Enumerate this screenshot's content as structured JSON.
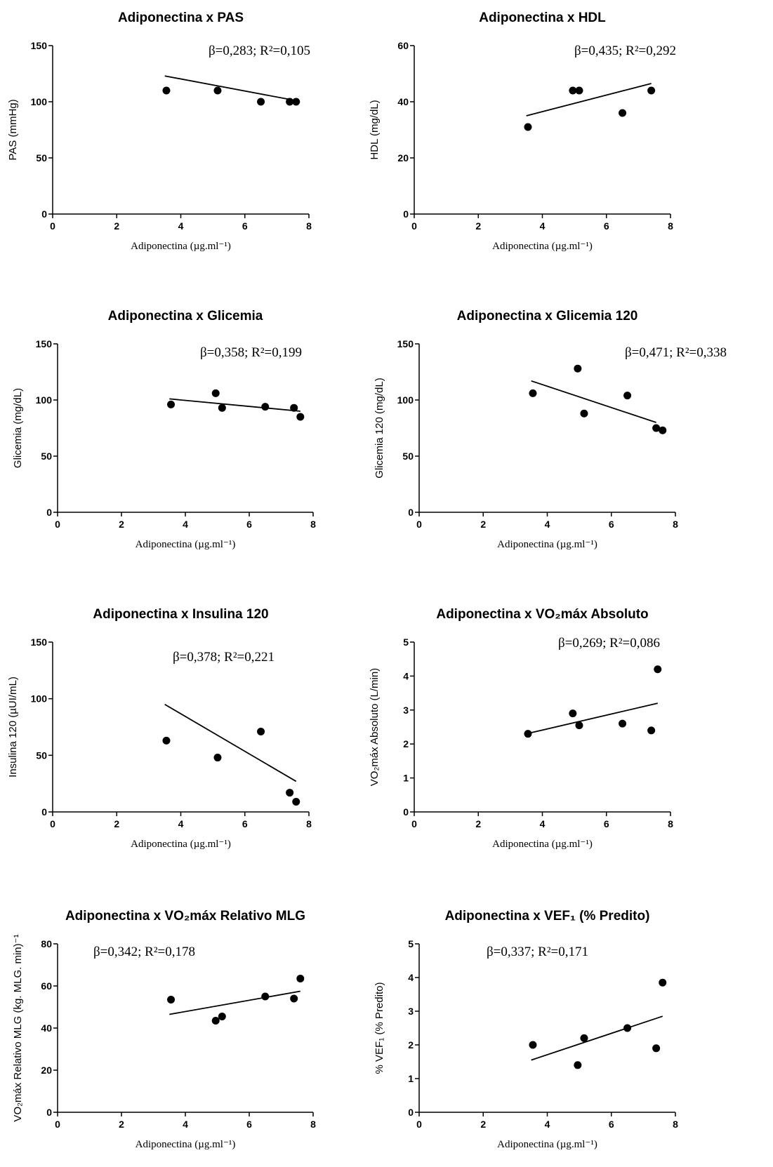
{
  "chart_data": [
    {
      "type": "scatter",
      "title": "Adiponectina x PAS",
      "xlabel": "Adiponectina (µg.ml⁻¹)",
      "ylabel": "PAS (mmHg)",
      "xlim": [
        0,
        8
      ],
      "ylim": [
        0,
        150
      ],
      "xticks": [
        0,
        2,
        4,
        6,
        8
      ],
      "yticks": [
        0,
        50,
        100,
        150
      ],
      "points": [
        [
          3.55,
          110
        ],
        [
          5.15,
          110
        ],
        [
          6.5,
          100
        ],
        [
          7.4,
          100
        ],
        [
          7.6,
          100
        ]
      ],
      "trendline": [
        [
          3.5,
          123
        ],
        [
          7.6,
          101
        ]
      ],
      "annotation": "β=0,283;  R²=0,105"
    },
    {
      "type": "scatter",
      "title": "Adiponectina x HDL",
      "xlabel": "Adiponectina (µg.ml⁻¹)",
      "ylabel": "HDL (mg/dL)",
      "xlim": [
        0,
        8
      ],
      "ylim": [
        0,
        60
      ],
      "xticks": [
        0,
        2,
        4,
        6,
        8
      ],
      "yticks": [
        0,
        20,
        40,
        60
      ],
      "points": [
        [
          3.55,
          31
        ],
        [
          4.95,
          44
        ],
        [
          5.15,
          44
        ],
        [
          6.5,
          36
        ],
        [
          7.4,
          44
        ]
      ],
      "trendline": [
        [
          3.5,
          35
        ],
        [
          7.4,
          46.5
        ]
      ],
      "annotation": "β=0,435;  R²=0,292"
    },
    {
      "type": "scatter",
      "title": "Adiponectina x Glicemia",
      "xlabel": "Adiponectina (µg.ml⁻¹)",
      "ylabel": "Glicemia (mg/dL)",
      "xlim": [
        0,
        8
      ],
      "ylim": [
        0,
        150
      ],
      "xticks": [
        0,
        2,
        4,
        6,
        8
      ],
      "yticks": [
        0,
        50,
        100,
        150
      ],
      "points": [
        [
          3.55,
          96
        ],
        [
          4.95,
          106
        ],
        [
          5.15,
          93
        ],
        [
          6.5,
          94
        ],
        [
          7.4,
          93
        ],
        [
          7.6,
          85
        ]
      ],
      "trendline": [
        [
          3.5,
          101
        ],
        [
          7.6,
          90
        ]
      ],
      "annotation": "β=0,358; R²=0,199"
    },
    {
      "type": "scatter",
      "title": "Adiponectina x Glicemia 120",
      "xlabel": "Adiponectina (µg.ml⁻¹)",
      "ylabel": "Glicemia 120 (mg/dL)",
      "xlim": [
        0,
        8
      ],
      "ylim": [
        0,
        150
      ],
      "xticks": [
        0,
        2,
        4,
        6,
        8
      ],
      "yticks": [
        0,
        50,
        100,
        150
      ],
      "points": [
        [
          3.55,
          106
        ],
        [
          4.95,
          128
        ],
        [
          5.15,
          88
        ],
        [
          6.5,
          104
        ],
        [
          7.4,
          75
        ],
        [
          7.6,
          73
        ]
      ],
      "trendline": [
        [
          3.5,
          117
        ],
        [
          7.4,
          80
        ]
      ],
      "annotation": "β=0,471;  R²=0,338"
    },
    {
      "type": "scatter",
      "title": "Adiponectina x Insulina 120",
      "xlabel": "Adiponectina (µg.ml⁻¹)",
      "ylabel": "Insulina 120 (µUI/mL)",
      "xlim": [
        0,
        8
      ],
      "ylim": [
        0,
        150
      ],
      "xticks": [
        0,
        2,
        4,
        6,
        8
      ],
      "yticks": [
        0,
        50,
        100,
        150
      ],
      "points": [
        [
          3.55,
          63
        ],
        [
          5.15,
          48
        ],
        [
          6.5,
          71
        ],
        [
          7.4,
          17
        ],
        [
          7.6,
          9
        ]
      ],
      "trendline": [
        [
          3.5,
          95
        ],
        [
          7.6,
          27
        ]
      ],
      "annotation": "β=0,378;  R²=0,221"
    },
    {
      "type": "scatter",
      "title": "Adiponectina x VO₂máx Absoluto",
      "xlabel": "Adiponectina (µg.ml⁻¹)",
      "ylabel": "VO₂máx Absoluto (L/min)",
      "xlim": [
        0,
        8
      ],
      "ylim": [
        0,
        5
      ],
      "xticks": [
        0,
        2,
        4,
        6,
        8
      ],
      "yticks": [
        0,
        1,
        2,
        3,
        4,
        5
      ],
      "points": [
        [
          3.55,
          2.3
        ],
        [
          4.95,
          2.9
        ],
        [
          5.15,
          2.55
        ],
        [
          6.5,
          2.6
        ],
        [
          7.4,
          2.4
        ],
        [
          7.6,
          4.2
        ]
      ],
      "trendline": [
        [
          3.5,
          2.3
        ],
        [
          7.6,
          3.2
        ]
      ],
      "annotation": "β=0,269;  R²=0,086"
    },
    {
      "type": "scatter",
      "title": "Adiponectina x VO₂máx Relativo MLG",
      "xlabel": "Adiponectina (µg.ml⁻¹)",
      "ylabel": "VO₂máx Relativo MLG (kg. MLG. min)⁻¹",
      "xlim": [
        0,
        8
      ],
      "ylim": [
        0,
        80
      ],
      "xticks": [
        0,
        2,
        4,
        6,
        8
      ],
      "yticks": [
        0,
        20,
        40,
        60,
        80
      ],
      "points": [
        [
          3.55,
          53.5
        ],
        [
          4.95,
          43.5
        ],
        [
          5.15,
          45.5
        ],
        [
          6.5,
          55
        ],
        [
          7.4,
          54
        ],
        [
          7.6,
          63.5
        ]
      ],
      "trendline": [
        [
          3.5,
          46.5
        ],
        [
          7.6,
          57.5
        ]
      ],
      "annotation": "β=0,342; R²=0,178"
    },
    {
      "type": "scatter",
      "title": "Adiponectina x VEF₁ (% Predito)",
      "xlabel": "Adiponectina (µg.ml⁻¹)",
      "ylabel": "% VEF₁ (% Predito)",
      "xlim": [
        0,
        8
      ],
      "ylim": [
        0,
        5
      ],
      "xticks": [
        0,
        2,
        4,
        6,
        8
      ],
      "yticks": [
        0,
        1,
        2,
        3,
        4,
        5
      ],
      "points": [
        [
          3.55,
          2.0
        ],
        [
          4.95,
          1.4
        ],
        [
          5.15,
          2.2
        ],
        [
          6.5,
          2.5
        ],
        [
          7.4,
          1.9
        ],
        [
          7.6,
          3.85
        ]
      ],
      "trendline": [
        [
          3.5,
          1.55
        ],
        [
          7.6,
          2.85
        ]
      ],
      "annotation": "β=0,337;  R²=0,171"
    }
  ]
}
